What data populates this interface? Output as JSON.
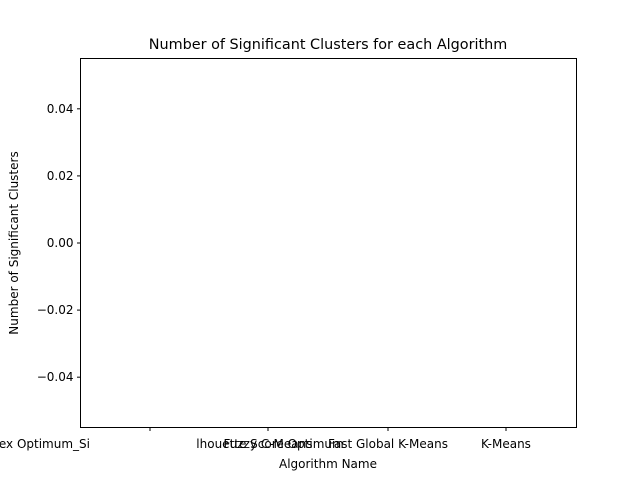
{
  "chart_data": {
    "type": "bar",
    "title": "Number of Significant Clusters for each Algorithm",
    "xlabel": "Algorithm Name",
    "ylabel": "Number of Significant Clusters",
    "categories": [
      "Calinski Harabasz Index Optimum",
      "Silhouette Score Optimum",
      "Fuzzy C-Means",
      "Fast Global K-Means",
      "K-Means"
    ],
    "tick_labels": [
      "ski Harabasz Index Optimum_Si",
      "Fuzzy C-Means",
      "Fast Global K-Means",
      "K-Means",
      "lhouette Score Optimum"
    ],
    "values": [
      0,
      0,
      0,
      0,
      0
    ],
    "ylim": [
      -0.055,
      0.055
    ],
    "yticks": [
      -0.04,
      -0.02,
      0.0,
      0.02,
      0.04
    ],
    "ytick_labels": [
      "−0.04",
      "−0.02",
      "0.00",
      "0.02",
      "0.04"
    ],
    "grid": false,
    "legend": "none"
  }
}
